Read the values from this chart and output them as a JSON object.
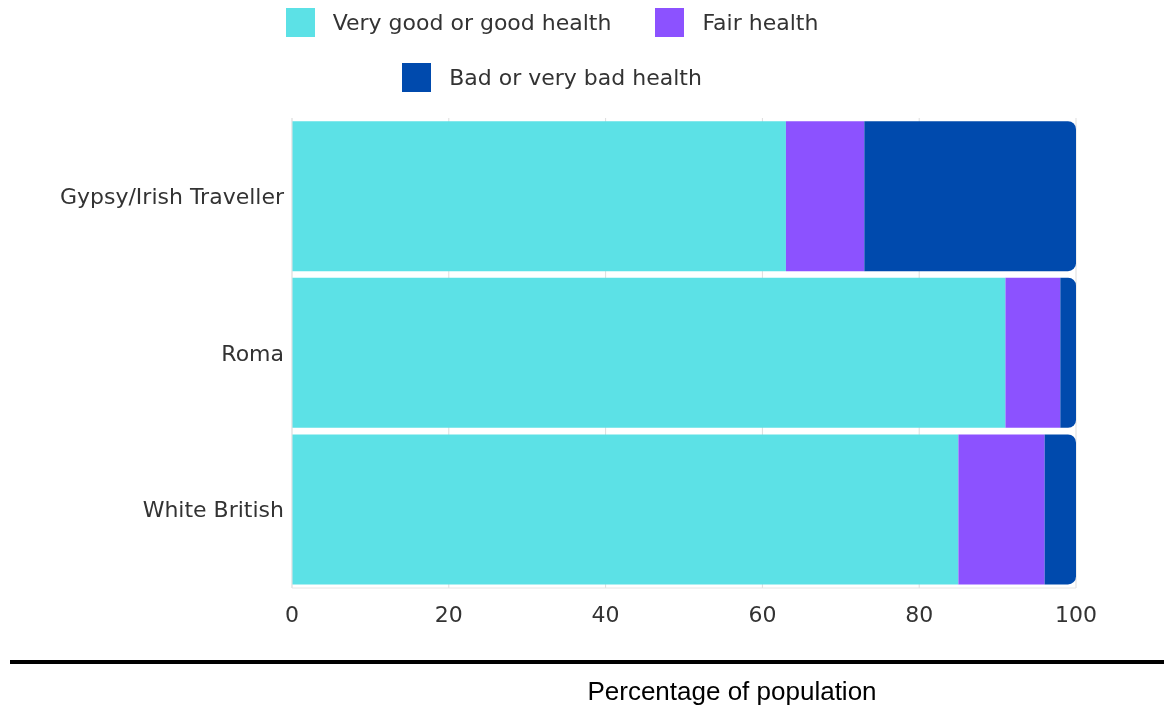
{
  "chart_data": {
    "type": "bar",
    "orientation": "horizontal",
    "stacked": true,
    "xlabel": "Percentage of population",
    "categories": [
      "Gypsy/Irish Traveller",
      "Roma",
      "White British"
    ],
    "series": [
      {
        "name": "Very good or good health",
        "color": "#5ce1e6",
        "values": [
          63,
          91,
          85
        ]
      },
      {
        "name": "Fair health",
        "color": "#8c52ff",
        "values": [
          10,
          7,
          11
        ]
      },
      {
        "name": "Bad or very bad health",
        "color": "#004aad",
        "values": [
          27,
          2,
          4
        ]
      }
    ],
    "xlim": [
      0,
      100
    ],
    "xticks": [
      0,
      20,
      40,
      60,
      80,
      100
    ],
    "grid": "x",
    "legend": "top"
  }
}
